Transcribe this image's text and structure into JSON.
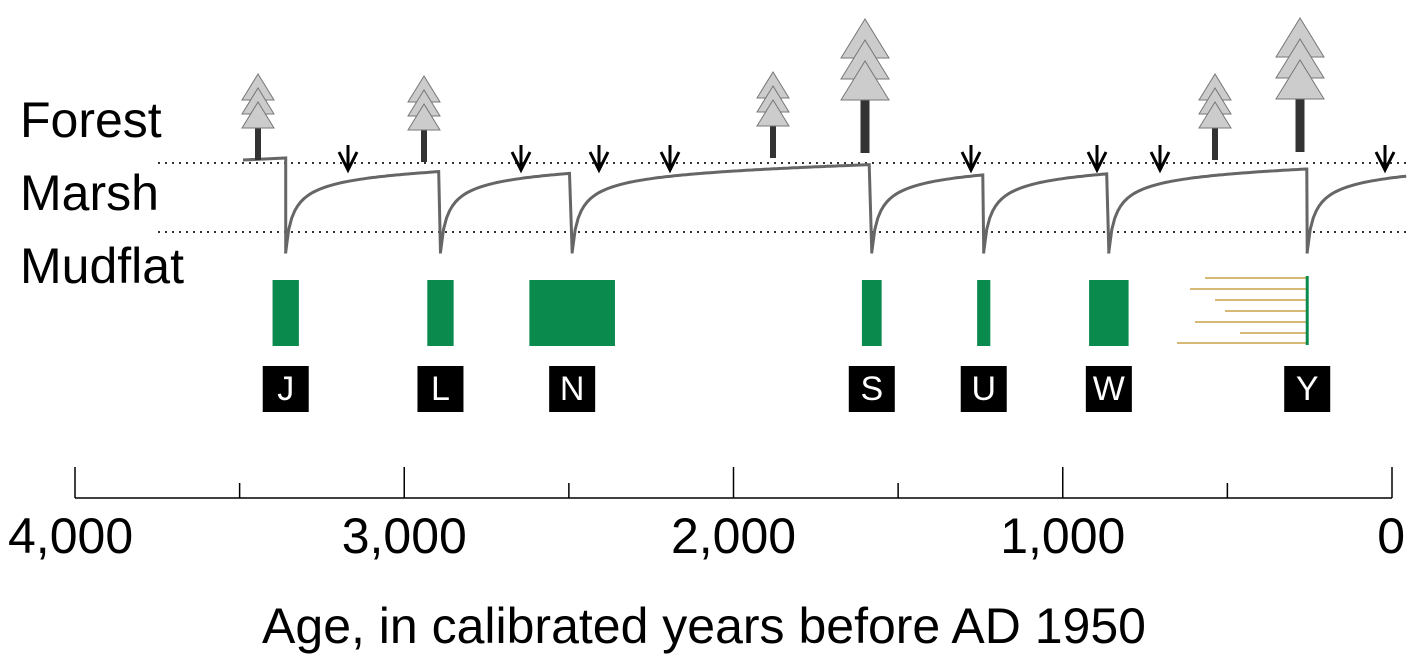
{
  "chart_data": {
    "type": "timeline",
    "row_labels": [
      "Forest",
      "Marsh",
      "Mudflat"
    ],
    "xlabel": "Age, in calibrated years before AD 1950",
    "xlim": [
      4000,
      0
    ],
    "xticks": [
      {
        "value": 4000,
        "label": "4,000"
      },
      {
        "value": 3000,
        "label": "3,000"
      },
      {
        "value": 2000,
        "label": "2,000"
      },
      {
        "value": 1000,
        "label": "1,000"
      },
      0
    ],
    "minor_xticks": [
      3500,
      2500,
      1500,
      500
    ],
    "color": "#0b8a4e",
    "events": [
      {
        "name": "J",
        "range": [
          3400,
          3320
        ]
      },
      {
        "name": "L",
        "range": [
          2930,
          2850
        ]
      },
      {
        "name": "N",
        "range": [
          2620,
          2360
        ]
      },
      {
        "name": "S",
        "range": [
          1610,
          1550
        ]
      },
      {
        "name": "U",
        "range": [
          1260,
          1220
        ]
      },
      {
        "name": "W",
        "range": [
          920,
          800
        ]
      },
      {
        "name": "Y",
        "range": [
          260,
          255
        ]
      }
    ]
  }
}
